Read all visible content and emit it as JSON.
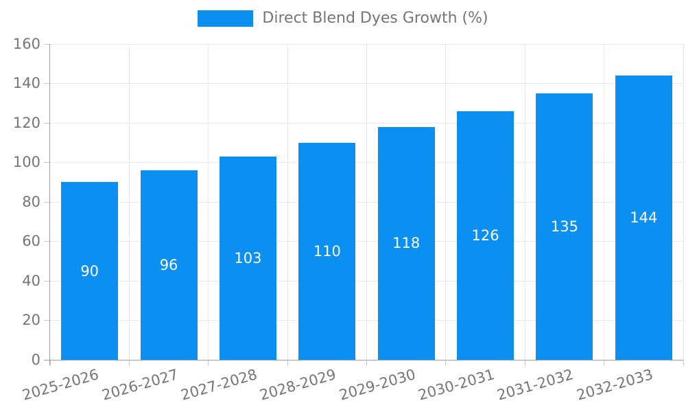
{
  "chart_data": {
    "type": "bar",
    "title": "",
    "legend": [
      {
        "label": "Direct Blend Dyes Growth (%)"
      }
    ],
    "legend_position": "top-center",
    "categories": [
      "2025-2026",
      "2026-2027",
      "2027-2028",
      "2028-2029",
      "2029-2030",
      "2030-2031",
      "2031-2032",
      "2032-2033"
    ],
    "values": [
      90,
      96,
      103,
      110,
      118,
      126,
      135,
      144
    ],
    "xlabel": "",
    "ylabel": "",
    "ylim": [
      0,
      160
    ],
    "yticks": [
      0,
      20,
      40,
      60,
      80,
      100,
      120,
      140,
      160
    ],
    "grid": true,
    "colors": {
      "series": "#0b90f2",
      "value_label": "#ffffff",
      "axis_line": "#9e9e9e",
      "tick_line": "#c6c6c6",
      "grid_line": "#e8e8e8",
      "text": "#757575"
    }
  }
}
